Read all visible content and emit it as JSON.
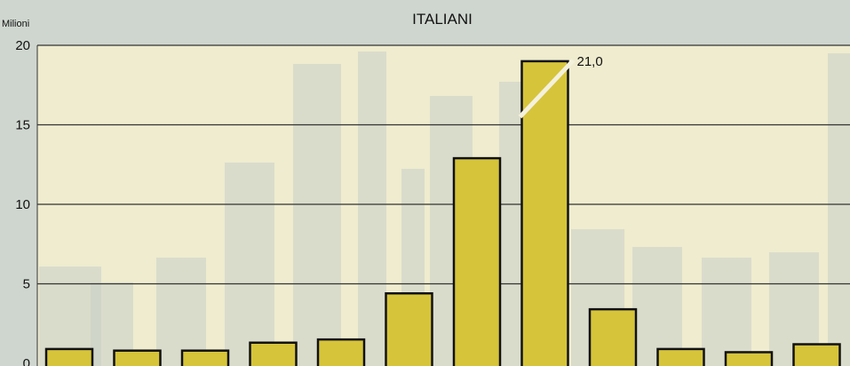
{
  "chart_data": {
    "type": "bar",
    "title": "ITALIANI",
    "ylabel": "Milioni",
    "ylim": [
      0,
      20
    ],
    "yticks": [
      "0",
      "5",
      "10",
      "15",
      "20"
    ],
    "grid": true,
    "values": [
      0.9,
      0.8,
      0.8,
      1.3,
      1.5,
      4.4,
      12.9,
      21.0,
      3.4,
      0.9,
      0.7,
      1.2
    ],
    "broken_bar_label": "21,0",
    "colors": {
      "bar_fill": "#d6c43a",
      "bar_stroke": "#111111",
      "plot_bg": "#efeccf",
      "grid": "#333333",
      "ghost": "#c9cfc8"
    }
  }
}
